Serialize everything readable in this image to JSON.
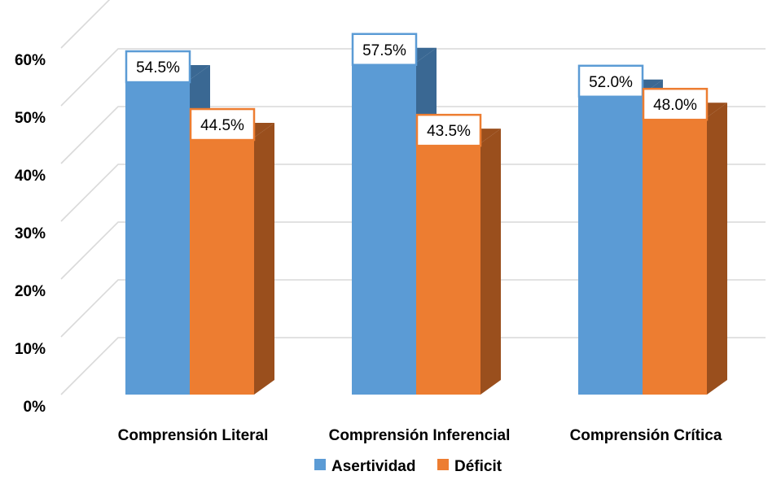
{
  "chart_data": {
    "type": "bar",
    "title": "",
    "xlabel": "",
    "ylabel": "",
    "categories": [
      "Comprensión Literal",
      "Comprensión Inferencial",
      "Comprensión Crítica"
    ],
    "series": [
      {
        "name": "Asertividad",
        "values": [
          54.5,
          57.5,
          52.0
        ],
        "color": "#5b9bd5",
        "side_color": "#3a6893",
        "label_border": "#5b9bd5"
      },
      {
        "name": "Déficit",
        "values": [
          44.5,
          43.5,
          48.0
        ],
        "color": "#ed7d31",
        "side_color": "#9a4f1d",
        "label_border": "#ed7d31"
      }
    ],
    "data_labels": [
      [
        "54.5%",
        "57.5%",
        "52.0%"
      ],
      [
        "44.5%",
        "43.5%",
        "48.0%"
      ]
    ],
    "ylim": [
      0,
      60
    ],
    "yticks": [
      0,
      10,
      20,
      30,
      40,
      50,
      60
    ],
    "ytick_labels": [
      "0%",
      "10%",
      "20%",
      "30%",
      "40%",
      "50%",
      "60%"
    ],
    "grid": true,
    "legend": "bottom",
    "style": "3d-clustered-column",
    "grid_color": "#d9d9d9"
  }
}
